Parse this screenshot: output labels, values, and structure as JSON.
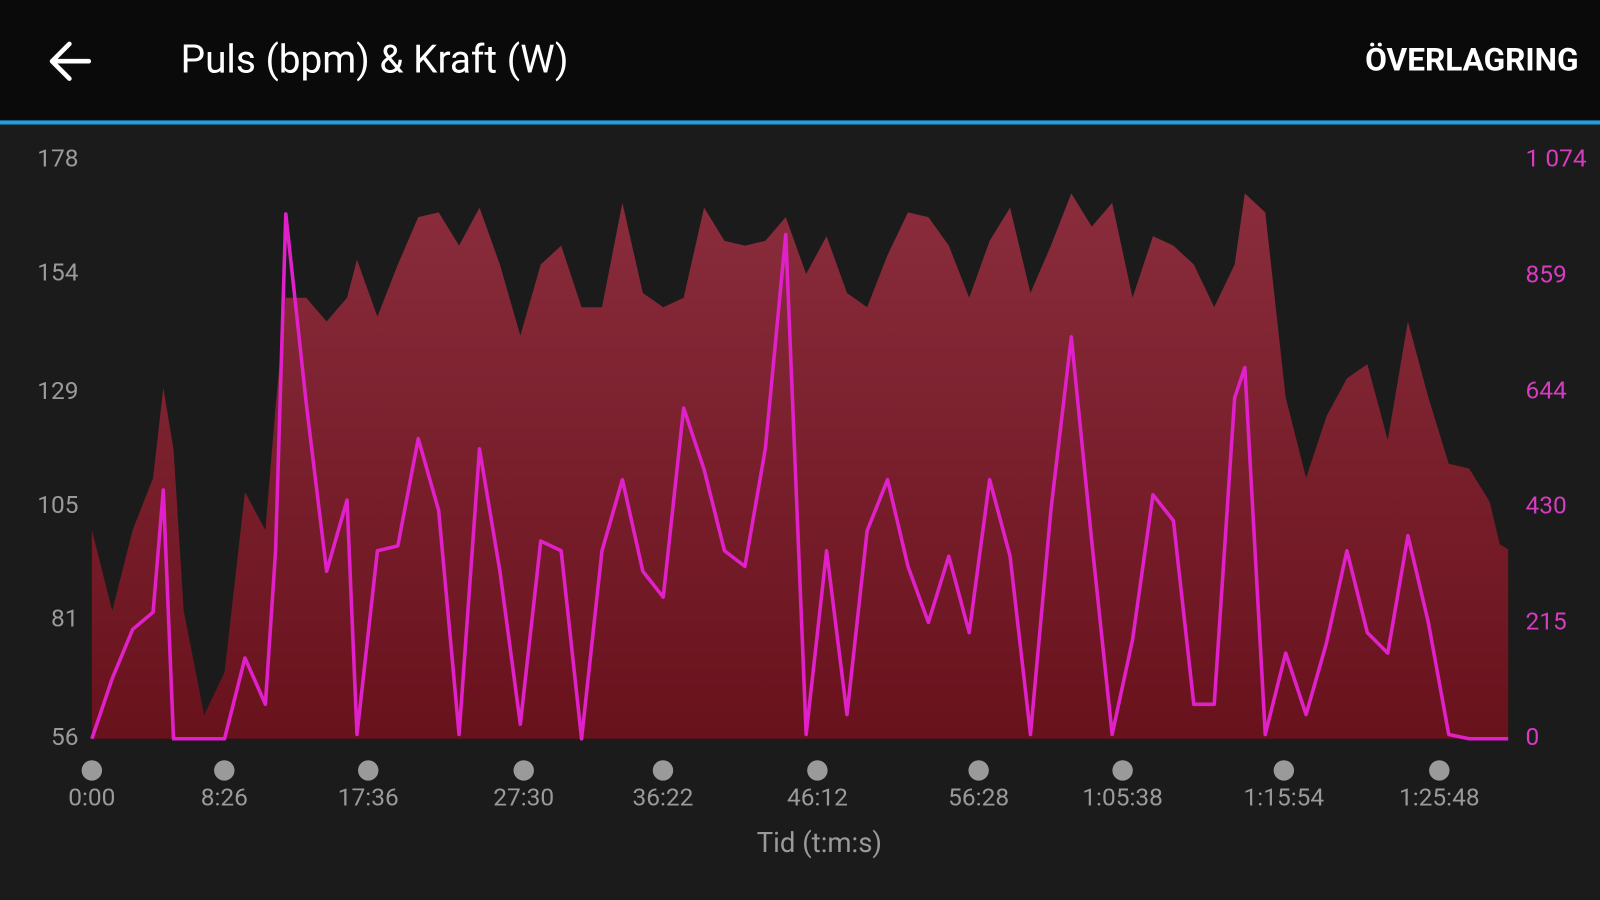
{
  "header": {
    "title": "Puls (bpm) & Kraft (W)",
    "action": "ÖVERLAGRING"
  },
  "chart_data": {
    "type": "combo",
    "x_label": "Tid (t:m:s)",
    "x": [
      0,
      78,
      156,
      234,
      273,
      312,
      351,
      429,
      507,
      585,
      663,
      702,
      741,
      819,
      897,
      975,
      1013,
      1091,
      1169,
      1247,
      1325,
      1403,
      1481,
      1559,
      1637,
      1715,
      1793,
      1871,
      1949,
      2027,
      2105,
      2183,
      2261,
      2339,
      2417,
      2495,
      2573,
      2651,
      2729,
      2807,
      2885,
      2962,
      3040,
      3118,
      3196,
      3274,
      3352,
      3430,
      3508,
      3586,
      3664,
      3742,
      3820,
      3898,
      3976,
      4054,
      4132,
      4210,
      4288,
      4366,
      4405,
      4483,
      4561,
      4639,
      4717,
      4795,
      4873,
      4951,
      5028,
      5106,
      5184,
      5262,
      5340,
      5379,
      5411
    ],
    "series": [
      {
        "name": "Puls (bpm)",
        "type": "area",
        "color": "#8a2a3b",
        "values": [
          100,
          83,
          100,
          111,
          130,
          117,
          83,
          61,
          70,
          108,
          100,
          126,
          149,
          149,
          144,
          149,
          157,
          145,
          156,
          166,
          167,
          160,
          168,
          156,
          141,
          156,
          160,
          147,
          147,
          169,
          150,
          147,
          149,
          168,
          161,
          160,
          161,
          166,
          154,
          162,
          150,
          147,
          158,
          167,
          166,
          160,
          149,
          161,
          168,
          150,
          160,
          171,
          164,
          169,
          149,
          162,
          160,
          156,
          147,
          156,
          171,
          167,
          128,
          111,
          124,
          132,
          135,
          119,
          144,
          128,
          114,
          113,
          106,
          97,
          96
        ]
      },
      {
        "name": "Kraft (W)",
        "type": "line",
        "axis": "y2",
        "color": "#e020c8",
        "values": [
          0,
          112,
          203,
          235,
          462,
          0,
          0,
          0,
          0,
          150,
          64,
          349,
          974,
          623,
          311,
          443,
          8,
          349,
          358,
          557,
          424,
          8,
          538,
          311,
          27,
          367,
          349,
          0,
          349,
          481,
          311,
          263,
          614,
          500,
          349,
          320,
          538,
          936,
          8,
          349,
          45,
          386,
          481,
          320,
          216,
          339,
          197,
          481,
          339,
          8,
          424,
          746,
          367,
          8,
          184,
          453,
          405,
          64,
          64,
          633,
          689,
          8,
          159,
          45,
          178,
          349,
          197,
          159,
          377,
          216,
          8,
          0,
          0,
          0,
          0
        ]
      }
    ],
    "xlim": [
      0,
      5411
    ],
    "xticks": [
      {
        "value": 0,
        "label": "0:00"
      },
      {
        "value": 506,
        "label": "8:26"
      },
      {
        "value": 1056,
        "label": "17:36"
      },
      {
        "value": 1650,
        "label": "27:30"
      },
      {
        "value": 2182,
        "label": "36:22"
      },
      {
        "value": 2772,
        "label": "46:12"
      },
      {
        "value": 3388,
        "label": "56:28"
      },
      {
        "value": 3938,
        "label": "1:05:38"
      },
      {
        "value": 4554,
        "label": "1:15:54"
      },
      {
        "value": 5148,
        "label": "1:25:48"
      }
    ],
    "ylim": [
      56,
      178
    ],
    "yticks": [
      56,
      81,
      105,
      129,
      154,
      178
    ],
    "y2lim": [
      0,
      1074
    ],
    "y2ticks": [
      0,
      215,
      430,
      644,
      859,
      {
        "value": 1074,
        "label": "1 074"
      }
    ]
  }
}
